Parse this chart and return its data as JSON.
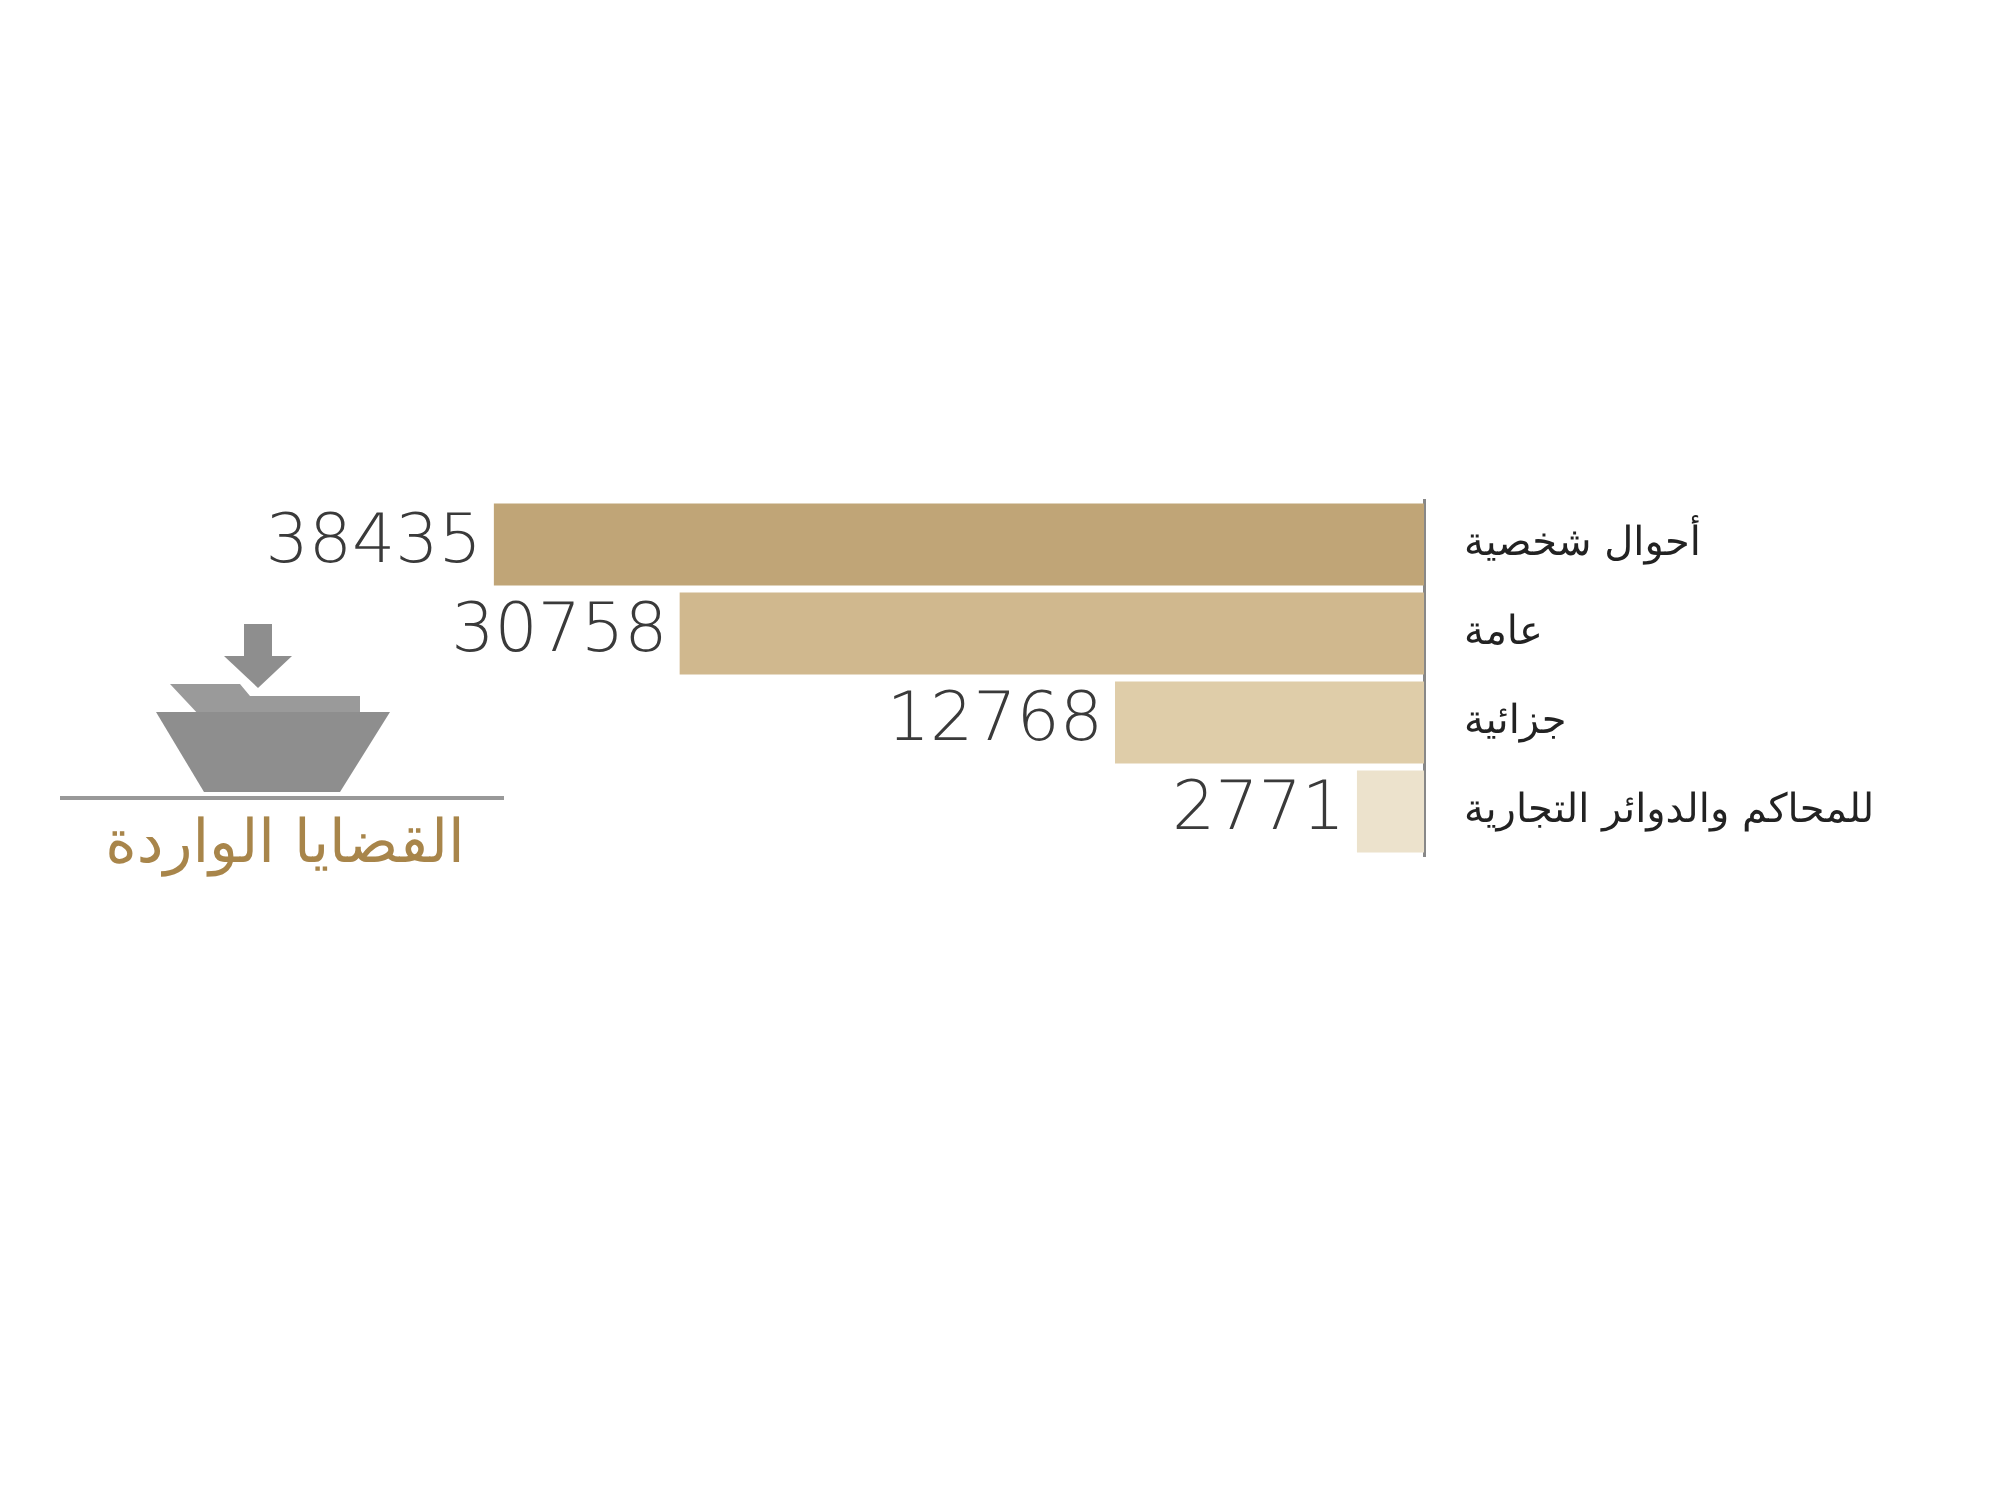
{
  "chart_data": {
    "type": "bar",
    "orientation": "horizontal",
    "title": "القضايا الواردة",
    "categories": [
      "أحوال شخصية",
      "عامة",
      "جزائية",
      "للمحاكم والدوائر التجارية"
    ],
    "values": [
      38435,
      30758,
      12768,
      2771
    ],
    "colors": [
      "#c0a577",
      "#d0b88e",
      "#dfcda9",
      "#ece2cc"
    ],
    "data_labels": true,
    "legend": false
  }
}
